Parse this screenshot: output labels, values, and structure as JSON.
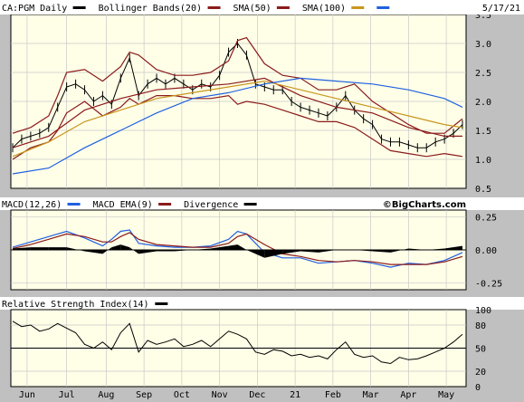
{
  "chart_data": {
    "type": "line",
    "date_label": "5/17/21",
    "x_months": [
      "Jun",
      "Jul",
      "Aug",
      "Sep",
      "Oct",
      "Nov",
      "Dec",
      "21",
      "Feb",
      "Mar",
      "Apr",
      "May"
    ],
    "watermark": "©BigCharts.com",
    "price_panel": {
      "legend": [
        {
          "label": "CA:PGM Daily",
          "color": "#000000"
        },
        {
          "label": "Bollinger Bands(20)",
          "color": "#8b1a1a"
        },
        {
          "label": "SMA(50)",
          "color": "#8b1a1a"
        },
        {
          "label": "SMA(100)",
          "color": "#c8961e"
        },
        {
          "label": "",
          "color": "#2060e0"
        }
      ],
      "ylim": [
        0.5,
        3.5
      ],
      "yticks": [
        "3.5",
        "3.0",
        "2.5",
        "2.0",
        "1.5",
        "1.0",
        "0.5"
      ],
      "series": [
        {
          "name": "CA:PGM Daily",
          "color": "#000000",
          "x": [
            0,
            5,
            10,
            15,
            20,
            25,
            30,
            35,
            40,
            45,
            50,
            55,
            60,
            65,
            70,
            75,
            80,
            85,
            90,
            95,
            100,
            105,
            110,
            115,
            120,
            125,
            130,
            135,
            140,
            145,
            150,
            155,
            160,
            165,
            170,
            175,
            180,
            185,
            190,
            195,
            200,
            205,
            210,
            215,
            220,
            225,
            230,
            235,
            240,
            245,
            250
          ],
          "y": [
            1.2,
            1.35,
            1.4,
            1.45,
            1.55,
            1.9,
            2.25,
            2.3,
            2.2,
            2.0,
            2.1,
            1.95,
            2.4,
            2.75,
            2.1,
            2.3,
            2.4,
            2.3,
            2.4,
            2.3,
            2.2,
            2.3,
            2.25,
            2.45,
            2.85,
            3.0,
            2.8,
            2.3,
            2.25,
            2.2,
            2.2,
            2.0,
            1.9,
            1.85,
            1.8,
            1.75,
            1.9,
            2.1,
            1.85,
            1.7,
            1.6,
            1.35,
            1.3,
            1.3,
            1.25,
            1.2,
            1.2,
            1.3,
            1.35,
            1.45,
            1.6
          ]
        },
        {
          "name": "Bollinger upper",
          "color": "#8b1a1a",
          "x": [
            0,
            10,
            20,
            25,
            30,
            40,
            50,
            60,
            65,
            70,
            80,
            90,
            100,
            110,
            120,
            125,
            130,
            140,
            150,
            160,
            170,
            180,
            190,
            200,
            210,
            220,
            230,
            240,
            250
          ],
          "y": [
            1.45,
            1.55,
            1.75,
            2.1,
            2.5,
            2.55,
            2.35,
            2.6,
            2.85,
            2.8,
            2.55,
            2.45,
            2.45,
            2.5,
            2.7,
            3.05,
            3.1,
            2.65,
            2.45,
            2.4,
            2.2,
            2.2,
            2.3,
            2.0,
            1.8,
            1.6,
            1.45,
            1.45,
            1.7
          ]
        },
        {
          "name": "Bollinger lower",
          "color": "#8b1a1a",
          "x": [
            0,
            10,
            20,
            25,
            30,
            40,
            50,
            60,
            65,
            70,
            80,
            90,
            100,
            110,
            120,
            125,
            130,
            140,
            150,
            160,
            170,
            180,
            190,
            200,
            210,
            220,
            230,
            240,
            250
          ],
          "y": [
            1.0,
            1.2,
            1.3,
            1.5,
            1.8,
            2.0,
            1.75,
            1.9,
            2.05,
            1.95,
            2.1,
            2.1,
            2.05,
            2.05,
            2.1,
            1.95,
            2.0,
            1.95,
            1.85,
            1.75,
            1.65,
            1.65,
            1.55,
            1.35,
            1.15,
            1.1,
            1.05,
            1.1,
            1.05
          ]
        },
        {
          "name": "SMA(50)",
          "color": "#8b1a1a",
          "x": [
            0,
            20,
            40,
            60,
            80,
            100,
            120,
            140,
            160,
            180,
            200,
            220,
            240,
            250
          ],
          "y": [
            1.2,
            1.4,
            1.85,
            2.05,
            2.2,
            2.25,
            2.3,
            2.4,
            2.1,
            1.9,
            1.8,
            1.55,
            1.4,
            1.4
          ]
        },
        {
          "name": "SMA(100)",
          "color": "#c8961e",
          "x": [
            0,
            20,
            40,
            60,
            80,
            100,
            120,
            140,
            160,
            180,
            200,
            220,
            240,
            250
          ],
          "y": [
            1.05,
            1.3,
            1.65,
            1.85,
            2.05,
            2.15,
            2.25,
            2.35,
            2.2,
            2.05,
            1.9,
            1.75,
            1.6,
            1.55
          ]
        },
        {
          "name": "",
          "color": "#2060e0",
          "x": [
            0,
            20,
            40,
            60,
            80,
            100,
            120,
            140,
            160,
            180,
            200,
            220,
            240,
            250
          ],
          "y": [
            0.75,
            0.85,
            1.2,
            1.5,
            1.8,
            2.05,
            2.15,
            2.3,
            2.4,
            2.35,
            2.3,
            2.2,
            2.05,
            1.9
          ]
        }
      ]
    },
    "macd_panel": {
      "legend": [
        {
          "label": "MACD(12,26)",
          "color": "#2060e0"
        },
        {
          "label": "MACD EMA(9)",
          "color": "#8b1a1a"
        },
        {
          "label": "Divergence",
          "color": "#000000"
        }
      ],
      "ylim": [
        -0.3,
        0.3
      ],
      "yticks": [
        "0.25",
        "0.00",
        "-0.25"
      ],
      "series": [
        {
          "name": "MACD(12,26)",
          "color": "#2060e0",
          "x": [
            0,
            10,
            20,
            30,
            40,
            50,
            55,
            60,
            65,
            70,
            80,
            90,
            100,
            110,
            120,
            125,
            130,
            140,
            150,
            160,
            170,
            180,
            190,
            200,
            210,
            220,
            230,
            240,
            250
          ],
          "y": [
            0.02,
            0.06,
            0.1,
            0.14,
            0.09,
            0.03,
            0.08,
            0.14,
            0.15,
            0.05,
            0.03,
            0.02,
            0.02,
            0.03,
            0.08,
            0.14,
            0.12,
            -0.02,
            -0.06,
            -0.06,
            -0.1,
            -0.09,
            -0.08,
            -0.1,
            -0.13,
            -0.1,
            -0.11,
            -0.08,
            -0.02
          ]
        },
        {
          "name": "MACD EMA(9)",
          "color": "#8b1a1a",
          "x": [
            0,
            10,
            20,
            30,
            40,
            50,
            55,
            60,
            65,
            70,
            80,
            90,
            100,
            110,
            120,
            125,
            130,
            140,
            150,
            160,
            170,
            180,
            190,
            200,
            210,
            220,
            230,
            240,
            250
          ],
          "y": [
            0.01,
            0.04,
            0.08,
            0.12,
            0.1,
            0.06,
            0.06,
            0.1,
            0.13,
            0.08,
            0.04,
            0.03,
            0.02,
            0.02,
            0.05,
            0.1,
            0.12,
            0.04,
            -0.03,
            -0.05,
            -0.08,
            -0.09,
            -0.08,
            -0.09,
            -0.11,
            -0.11,
            -0.11,
            -0.09,
            -0.05
          ]
        },
        {
          "name": "Divergence",
          "color": "#000000",
          "x": [
            0,
            10,
            20,
            30,
            40,
            50,
            55,
            60,
            65,
            70,
            80,
            90,
            100,
            110,
            120,
            125,
            130,
            140,
            150,
            160,
            170,
            180,
            190,
            200,
            210,
            220,
            230,
            240,
            250
          ],
          "y": [
            0.01,
            0.02,
            0.02,
            0.02,
            -0.01,
            -0.03,
            0.02,
            0.04,
            0.02,
            -0.03,
            -0.01,
            -0.01,
            0.0,
            0.01,
            0.03,
            0.04,
            0.0,
            -0.06,
            -0.03,
            -0.01,
            -0.02,
            0.0,
            0.0,
            -0.01,
            -0.02,
            0.01,
            0.0,
            0.01,
            0.03
          ]
        }
      ]
    },
    "rsi_panel": {
      "legend": [
        {
          "label": "Relative Strength Index(14)",
          "color": "#000000"
        }
      ],
      "ylim": [
        0,
        100
      ],
      "yticks": [
        "100",
        "80",
        "50",
        "20",
        "0"
      ],
      "reference_line": 50,
      "series": [
        {
          "name": "Relative Strength Index(14)",
          "color": "#000000",
          "x": [
            0,
            5,
            10,
            15,
            20,
            25,
            30,
            35,
            40,
            45,
            50,
            55,
            60,
            65,
            70,
            75,
            80,
            85,
            90,
            95,
            100,
            105,
            110,
            115,
            120,
            125,
            130,
            135,
            140,
            145,
            150,
            155,
            160,
            165,
            170,
            175,
            180,
            185,
            190,
            195,
            200,
            205,
            210,
            215,
            220,
            225,
            230,
            235,
            240,
            245,
            250
          ],
          "y": [
            85,
            78,
            80,
            72,
            75,
            82,
            76,
            70,
            55,
            50,
            58,
            48,
            70,
            82,
            45,
            60,
            55,
            58,
            62,
            52,
            55,
            60,
            52,
            62,
            72,
            68,
            62,
            45,
            42,
            48,
            46,
            40,
            42,
            38,
            40,
            36,
            48,
            58,
            42,
            38,
            40,
            32,
            30,
            38,
            35,
            36,
            40,
            45,
            50,
            58,
            68
          ]
        }
      ]
    }
  }
}
